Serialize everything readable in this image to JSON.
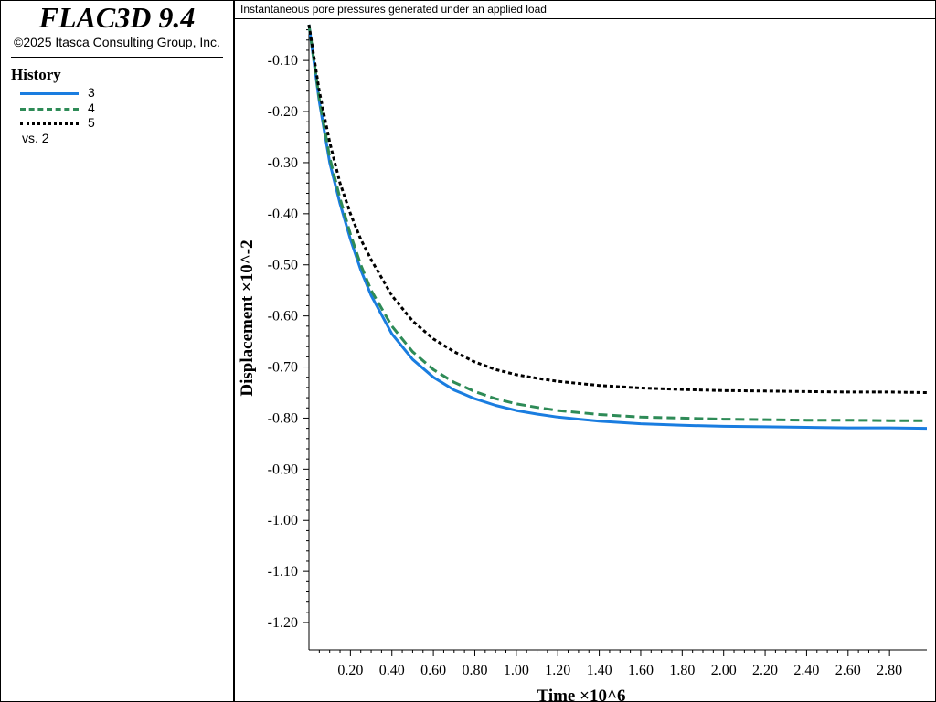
{
  "app": {
    "title": "FLAC3D 9.4",
    "copyright": "©2025 Itasca Consulting Group, Inc."
  },
  "legend": {
    "heading": "History",
    "items": [
      {
        "label": "3",
        "color": "#1a7de0",
        "style": "solid"
      },
      {
        "label": "4",
        "color": "#2e8b57",
        "style": "dashed"
      },
      {
        "label": "5",
        "color": "#000000",
        "style": "dotted"
      }
    ],
    "vs_label": "vs. 2"
  },
  "plot": {
    "title": "Instantaneous pore pressures generated under an applied load"
  },
  "chart_data": {
    "type": "line",
    "title": "Instantaneous pore pressures generated under an applied load",
    "xlabel": "Time ×10^6",
    "ylabel": "Displacement ×10^-2",
    "xlim": [
      0.0,
      2.98
    ],
    "ylim": [
      -1.25,
      -0.03
    ],
    "xticks": [
      "0.20",
      "0.40",
      "0.60",
      "0.80",
      "1.00",
      "1.20",
      "1.40",
      "1.60",
      "1.80",
      "2.00",
      "2.20",
      "2.40",
      "2.60",
      "2.80"
    ],
    "yticks": [
      "-0.10",
      "-0.20",
      "-0.30",
      "-0.40",
      "-0.50",
      "-0.60",
      "-0.70",
      "-0.80",
      "-0.90",
      "-1.00",
      "-1.10",
      "-1.20"
    ],
    "x": [
      0.0,
      0.05,
      0.1,
      0.15,
      0.2,
      0.25,
      0.3,
      0.4,
      0.5,
      0.6,
      0.7,
      0.8,
      0.9,
      1.0,
      1.1,
      1.2,
      1.4,
      1.6,
      1.8,
      2.0,
      2.2,
      2.4,
      2.6,
      2.8,
      2.98
    ],
    "series": [
      {
        "name": "3",
        "color": "#1a7de0",
        "style": "solid",
        "values": [
          -0.03,
          -0.18,
          -0.3,
          -0.38,
          -0.45,
          -0.51,
          -0.56,
          -0.635,
          -0.685,
          -0.72,
          -0.745,
          -0.762,
          -0.775,
          -0.785,
          -0.792,
          -0.798,
          -0.806,
          -0.811,
          -0.814,
          -0.816,
          -0.817,
          -0.818,
          -0.819,
          -0.819,
          -0.82
        ]
      },
      {
        "name": "4",
        "color": "#2e8b57",
        "style": "dashed",
        "values": [
          -0.03,
          -0.175,
          -0.29,
          -0.37,
          -0.44,
          -0.5,
          -0.55,
          -0.62,
          -0.67,
          -0.705,
          -0.73,
          -0.748,
          -0.762,
          -0.772,
          -0.779,
          -0.785,
          -0.793,
          -0.798,
          -0.8,
          -0.802,
          -0.803,
          -0.804,
          -0.804,
          -0.805,
          -0.805
        ]
      },
      {
        "name": "5",
        "color": "#000000",
        "style": "dotted",
        "values": [
          -0.03,
          -0.16,
          -0.26,
          -0.34,
          -0.4,
          -0.45,
          -0.49,
          -0.56,
          -0.61,
          -0.645,
          -0.67,
          -0.69,
          -0.705,
          -0.715,
          -0.722,
          -0.728,
          -0.736,
          -0.741,
          -0.744,
          -0.746,
          -0.747,
          -0.748,
          -0.749,
          -0.749,
          -0.75
        ]
      }
    ],
    "grid": false,
    "legend_position": "left-panel"
  }
}
